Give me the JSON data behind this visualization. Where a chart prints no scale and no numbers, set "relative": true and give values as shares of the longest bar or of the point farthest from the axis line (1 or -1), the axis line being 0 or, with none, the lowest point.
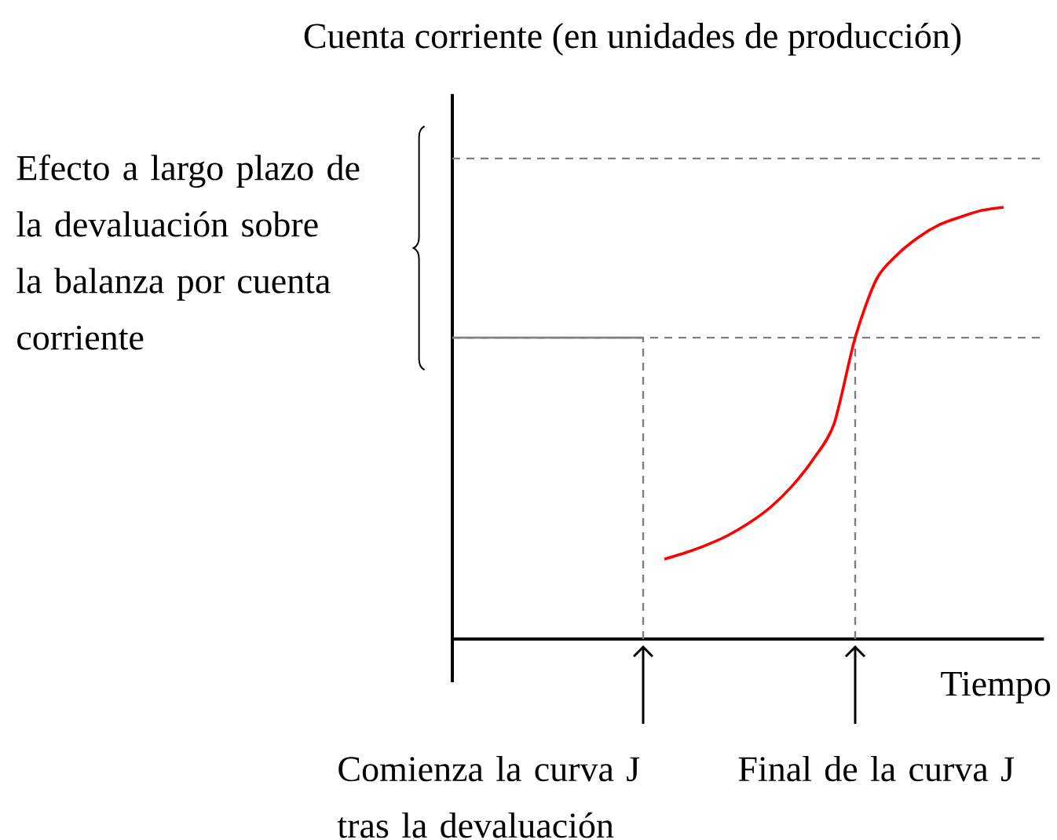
{
  "chart_data": {
    "type": "line",
    "relative": true,
    "ylabel": "Cuenta corriente (en unidades de producción)",
    "xlabel": "Tiempo",
    "categories": [
      null,
      null,
      null,
      null,
      null,
      null,
      null,
      null,
      null,
      null,
      null,
      null,
      null,
      null,
      null,
      null,
      null,
      null,
      null,
      null,
      null,
      null,
      null,
      null,
      null,
      null,
      null,
      null
    ],
    "series": [
      {
        "color": "#808080",
        "values": [
          0.698,
          0.698,
          0.698,
          0.698,
          0.698,
          0.698,
          0.698,
          0.698,
          0.698,
          0.698,
          null,
          null,
          null,
          null,
          null,
          null,
          null,
          null,
          null,
          null,
          null,
          null,
          null,
          null,
          null,
          null,
          null,
          null
        ]
      },
      {
        "color": "#ff0000",
        "values": [
          null,
          null,
          null,
          null,
          null,
          null,
          null,
          null,
          null,
          null,
          0.185,
          0.2,
          0.218,
          0.24,
          0.269,
          0.305,
          0.353,
          0.415,
          0.498,
          0.698,
          0.833,
          0.891,
          0.931,
          0.96,
          0.978,
          0.993,
          1.0,
          null
        ]
      }
    ],
    "ref_lines": [
      {
        "axis": "y",
        "value": 1.113,
        "color": "#808080",
        "line_style": "dashed"
      },
      {
        "axis": "y",
        "value": 0.698,
        "color": "#808080",
        "line_style": "dashed"
      }
    ],
    "annotations": [
      "Efecto a largo plazo de la devaluación sobre la balanza por cuenta corriente",
      "Comienza la curva J tras la devaluación",
      "Final de la curva J"
    ],
    "line_style": "solid"
  }
}
